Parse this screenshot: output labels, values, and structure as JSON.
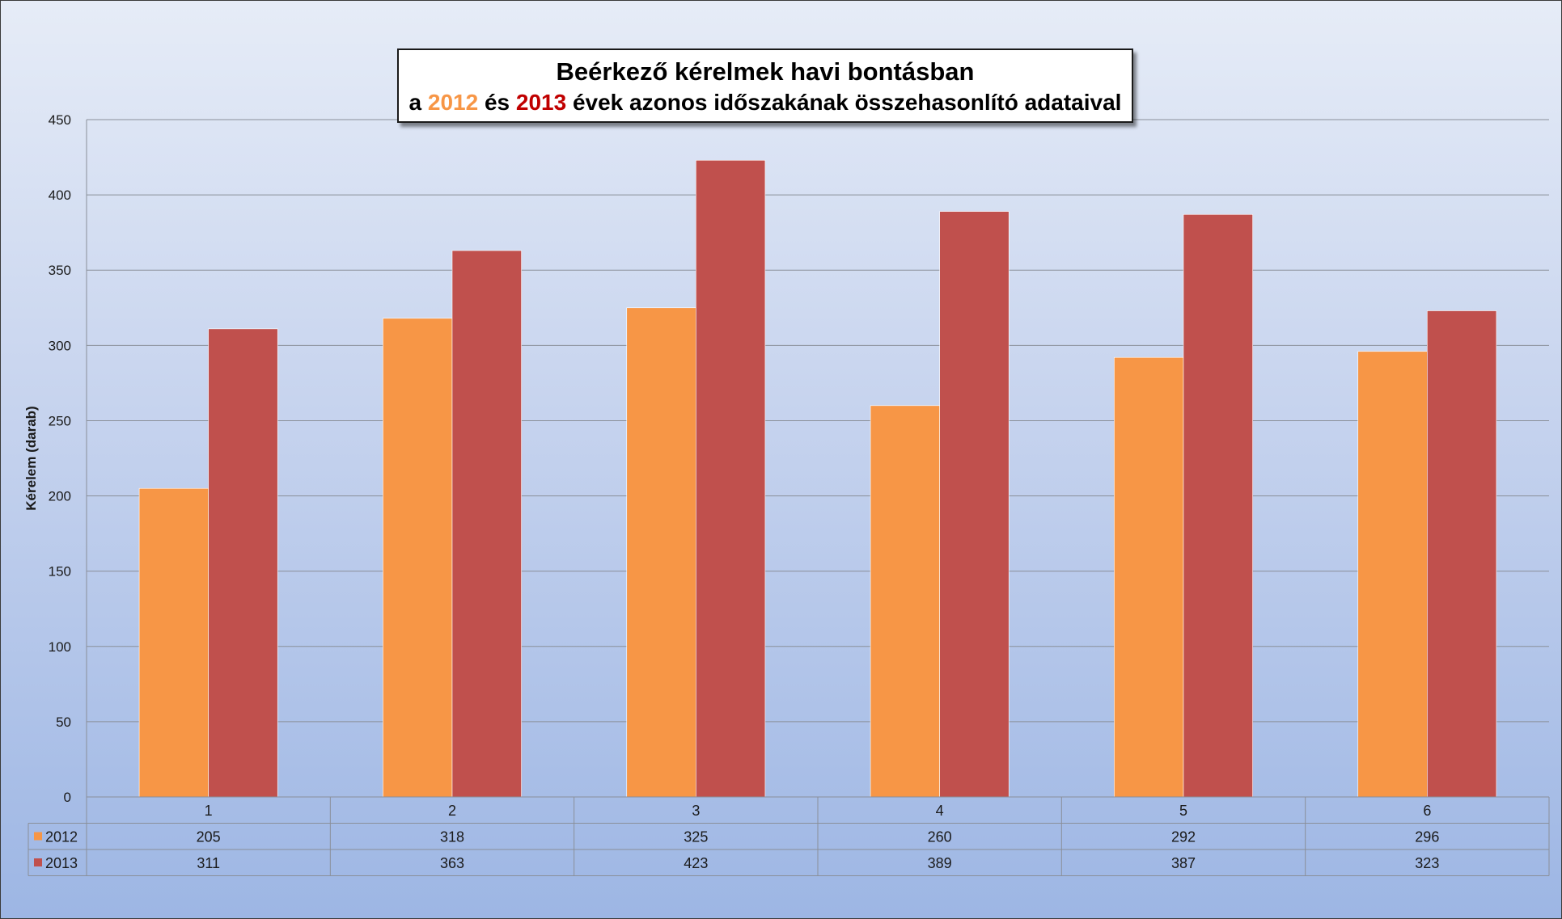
{
  "colors": {
    "series_2012": "#f79646",
    "series_2013": "#c0504d",
    "title_2012_color": "#f79646",
    "title_2013_color": "#c00000"
  },
  "title": {
    "line1": "Beérkező kérelmek havi bontásban",
    "line2_prefix": "a ",
    "line2_year1": "2012",
    "line2_middle": " és ",
    "line2_year2": "2013",
    "line2_suffix": " évek azonos időszakának összehasonlító adataival"
  },
  "chart_data": {
    "type": "bar",
    "title": "Beérkező kérelmek havi bontásban a 2012 és 2013 évek azonos időszakának összehasonlító adataival",
    "xlabel": "",
    "ylabel": "Kérelem (darab)",
    "categories": [
      "1",
      "2",
      "3",
      "4",
      "5",
      "6"
    ],
    "series": [
      {
        "name": "2012",
        "values": [
          205,
          318,
          325,
          260,
          292,
          296
        ]
      },
      {
        "name": "2013",
        "values": [
          311,
          363,
          423,
          389,
          387,
          323
        ]
      }
    ],
    "ylim": [
      0,
      450
    ],
    "yticks": [
      0,
      50,
      100,
      150,
      200,
      250,
      300,
      350,
      400,
      450
    ],
    "grid": true,
    "legend": "data-table"
  }
}
